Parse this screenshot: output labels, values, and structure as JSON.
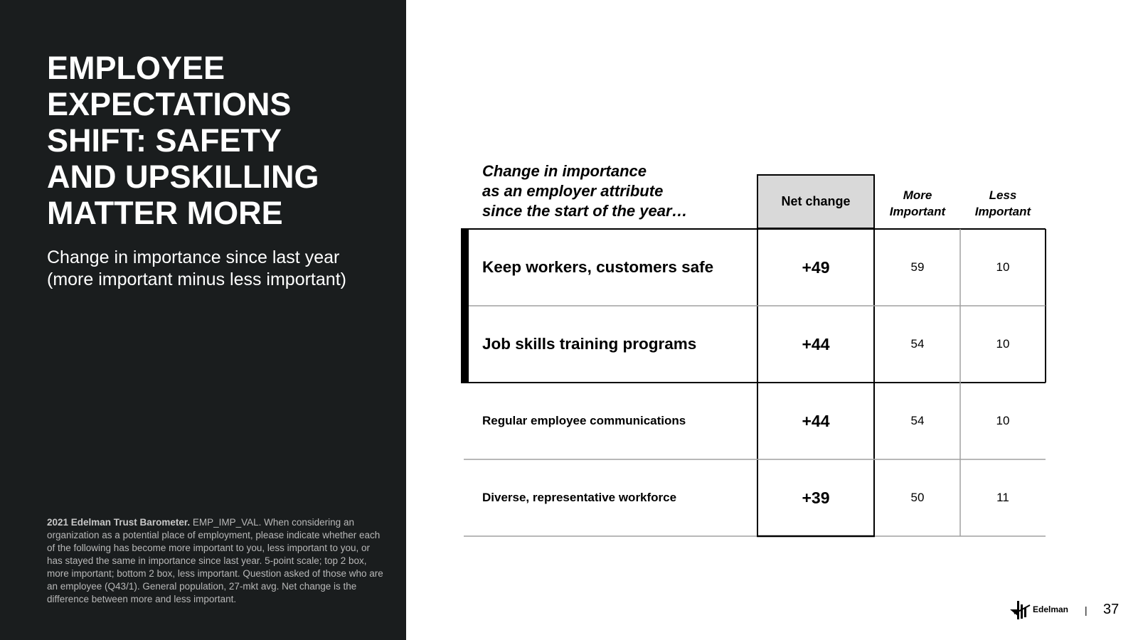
{
  "left_panel": {
    "title_lines": [
      "EMPLOYEE",
      "EXPECTATIONS",
      "SHIFT: SAFETY",
      "AND UPSKILLING",
      "MATTER MORE"
    ],
    "subtitle_lines": [
      "Change in importance since last year",
      "(more important minus less important)"
    ],
    "footnote_bold": "2021 Edelman Trust Barometer.",
    "footnote_text": " EMP_IMP_VAL.  When considering an organization as a potential place of employment, please indicate whether each of the following has become more important to you, less important to you, or has stayed the same in importance since last year. 5-point scale; top 2 box, more important; bottom 2 box, less important. Question asked of those who are an employee (Q43/1). General population, 27-mkt avg. Net change is the difference between more and less important."
  },
  "chart_data": {
    "type": "table",
    "title_lines": [
      "Change in importance",
      "as an employer attribute",
      "since the start of the year…"
    ],
    "columns": [
      "Net change",
      "More Important",
      "Less Important"
    ],
    "column_header_lines": {
      "more": [
        "More",
        "Important"
      ],
      "less": [
        "Less",
        "Important"
      ]
    },
    "rows": [
      {
        "label": "Keep workers, customers safe",
        "net": "+49",
        "more": 59,
        "less": 10,
        "highlighted": true
      },
      {
        "label": "Job skills training programs",
        "net": "+44",
        "more": 54,
        "less": 10,
        "highlighted": true
      },
      {
        "label": "Regular employee communications",
        "net": "+44",
        "more": 54,
        "less": 10,
        "highlighted": false
      },
      {
        "label": "Diverse, representative workforce",
        "net": "+39",
        "more": 50,
        "less": 11,
        "highlighted": false
      }
    ],
    "net_header_color": "#d9d9d9"
  },
  "footer": {
    "brand": "Edelman",
    "separator": "|",
    "page_number": "37"
  },
  "colors": {
    "panel_bg": "#1a1d1e",
    "footnote": "#b8b8b8"
  }
}
